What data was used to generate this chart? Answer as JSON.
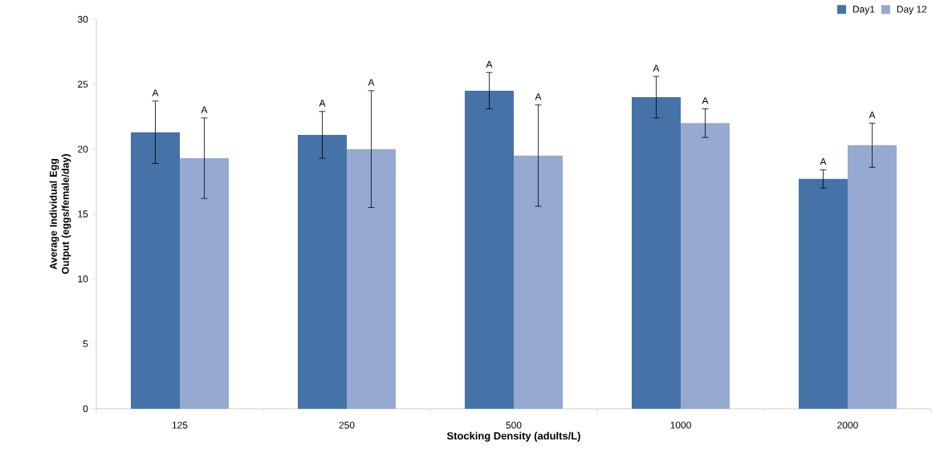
{
  "chart_data": {
    "type": "bar",
    "xlabel": "Stocking Density (adults/L)",
    "ylabel": "Average Individual Egg Output (eggs/female/day)",
    "categories": [
      "125",
      "250",
      "500",
      "1000",
      "2000"
    ],
    "series": [
      {
        "name": "Day1",
        "color": "#4572a7",
        "values": [
          21.3,
          21.1,
          24.5,
          24.0,
          17.7
        ],
        "errors": [
          2.4,
          1.8,
          1.4,
          1.6,
          0.7
        ]
      },
      {
        "name": "Day 12",
        "color": "#95a9d1",
        "values": [
          19.3,
          20.0,
          19.5,
          22.0,
          20.3
        ],
        "errors": [
          3.1,
          4.5,
          3.9,
          1.1,
          1.7
        ]
      }
    ],
    "ylim": [
      0,
      30
    ],
    "yticks": [
      0,
      5,
      10,
      15,
      20,
      25,
      30
    ],
    "legend": "top right",
    "annotations": [
      "A",
      "A",
      "A",
      "A",
      "A",
      "A",
      "A",
      "A",
      "A",
      "A"
    ]
  }
}
